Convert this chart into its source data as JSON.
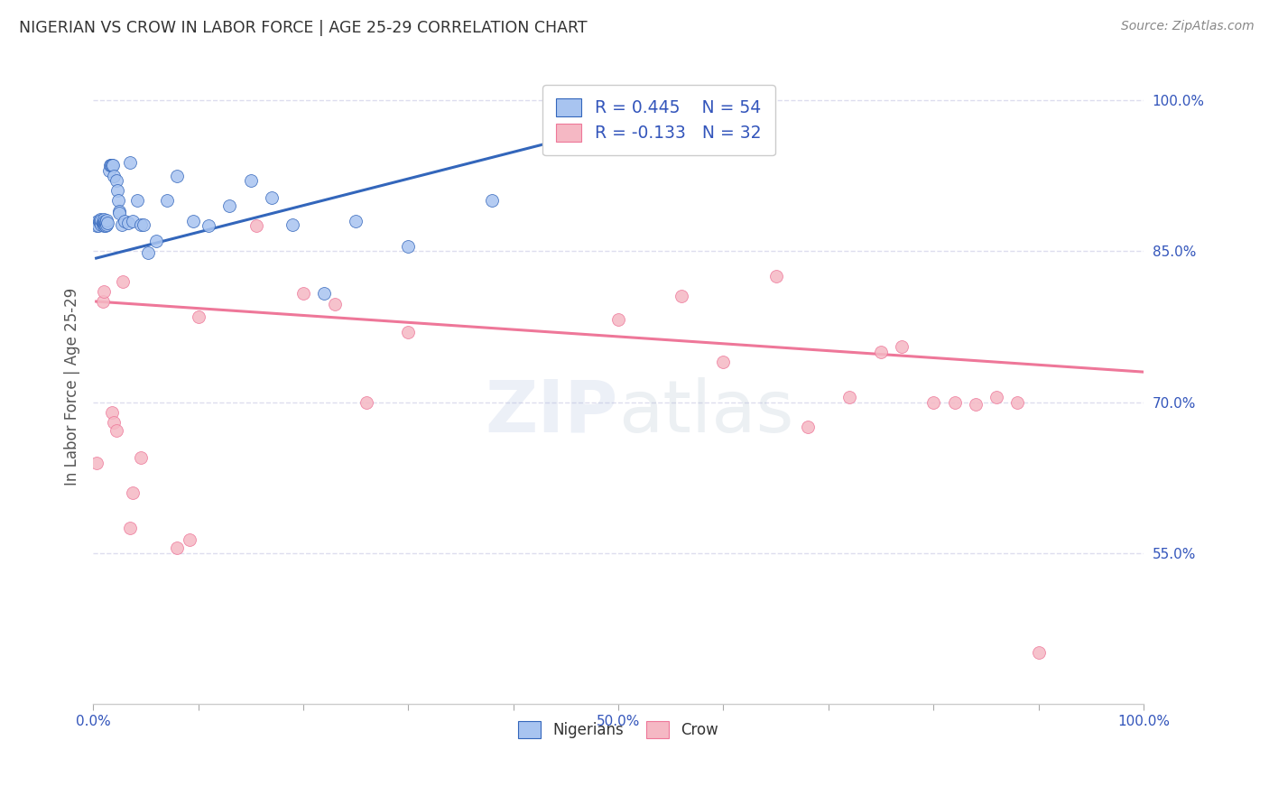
{
  "title": "NIGERIAN VS CROW IN LABOR FORCE | AGE 25-29 CORRELATION CHART",
  "source": "Source: ZipAtlas.com",
  "ylabel": "In Labor Force | Age 25-29",
  "watermark": "ZIPatlas",
  "xlim": [
    0.0,
    1.0
  ],
  "ylim": [
    0.4,
    1.03
  ],
  "xticks": [
    0.0,
    0.1,
    0.2,
    0.3,
    0.4,
    0.5,
    0.6,
    0.7,
    0.8,
    0.9,
    1.0
  ],
  "xtick_labels": [
    "0.0%",
    "",
    "",
    "",
    "",
    "50.0%",
    "",
    "",
    "",
    "",
    "100.0%"
  ],
  "ytick_labels": [
    "55.0%",
    "70.0%",
    "85.0%",
    "100.0%"
  ],
  "ytick_vals": [
    0.55,
    0.7,
    0.85,
    1.0
  ],
  "blue_color": "#a8c4f0",
  "pink_color": "#f5b8c4",
  "line_blue": "#3366bb",
  "line_pink": "#ee7799",
  "legend_text_color": "#3355bb",
  "title_color": "#333333",
  "grid_color": "#ddddee",
  "background_color": "#ffffff",
  "nigerians_x": [
    0.003,
    0.004,
    0.005,
    0.006,
    0.007,
    0.007,
    0.008,
    0.008,
    0.009,
    0.009,
    0.01,
    0.01,
    0.01,
    0.011,
    0.011,
    0.012,
    0.012,
    0.013,
    0.013,
    0.014,
    0.015,
    0.016,
    0.017,
    0.018,
    0.019,
    0.02,
    0.022,
    0.023,
    0.024,
    0.025,
    0.025,
    0.027,
    0.03,
    0.033,
    0.035,
    0.038,
    0.042,
    0.045,
    0.048,
    0.052,
    0.06,
    0.07,
    0.08,
    0.095,
    0.11,
    0.13,
    0.15,
    0.17,
    0.19,
    0.22,
    0.25,
    0.3,
    0.38,
    0.5
  ],
  "nigerians_y": [
    0.875,
    0.88,
    0.875,
    0.88,
    0.878,
    0.882,
    0.876,
    0.881,
    0.877,
    0.879,
    0.875,
    0.878,
    0.882,
    0.876,
    0.88,
    0.875,
    0.879,
    0.876,
    0.881,
    0.878,
    0.93,
    0.935,
    0.935,
    0.935,
    0.935,
    0.925,
    0.92,
    0.91,
    0.9,
    0.89,
    0.888,
    0.876,
    0.88,
    0.878,
    0.938,
    0.88,
    0.9,
    0.876,
    0.876,
    0.848,
    0.86,
    0.9,
    0.925,
    0.88,
    0.875,
    0.895,
    0.92,
    0.903,
    0.876,
    0.808,
    0.88,
    0.855,
    0.9,
    0.955
  ],
  "crow_x": [
    0.003,
    0.009,
    0.01,
    0.018,
    0.02,
    0.022,
    0.028,
    0.035,
    0.038,
    0.045,
    0.08,
    0.092,
    0.1,
    0.155,
    0.2,
    0.23,
    0.3,
    0.26,
    0.56,
    0.65,
    0.72,
    0.75,
    0.77,
    0.8,
    0.82,
    0.84,
    0.86,
    0.88,
    0.9,
    0.5,
    0.6,
    0.68
  ],
  "crow_y": [
    0.64,
    0.8,
    0.81,
    0.69,
    0.68,
    0.672,
    0.82,
    0.575,
    0.61,
    0.645,
    0.555,
    0.563,
    0.785,
    0.875,
    0.808,
    0.797,
    0.77,
    0.7,
    0.805,
    0.825,
    0.705,
    0.75,
    0.755,
    0.7,
    0.7,
    0.698,
    0.705,
    0.7,
    0.451,
    0.782,
    0.74,
    0.675
  ],
  "blue_trendline_x": [
    0.003,
    0.5
  ],
  "blue_trendline_y": [
    0.843,
    0.975
  ],
  "pink_trendline_x": [
    0.003,
    1.0
  ],
  "pink_trendline_y": [
    0.8,
    0.73
  ]
}
